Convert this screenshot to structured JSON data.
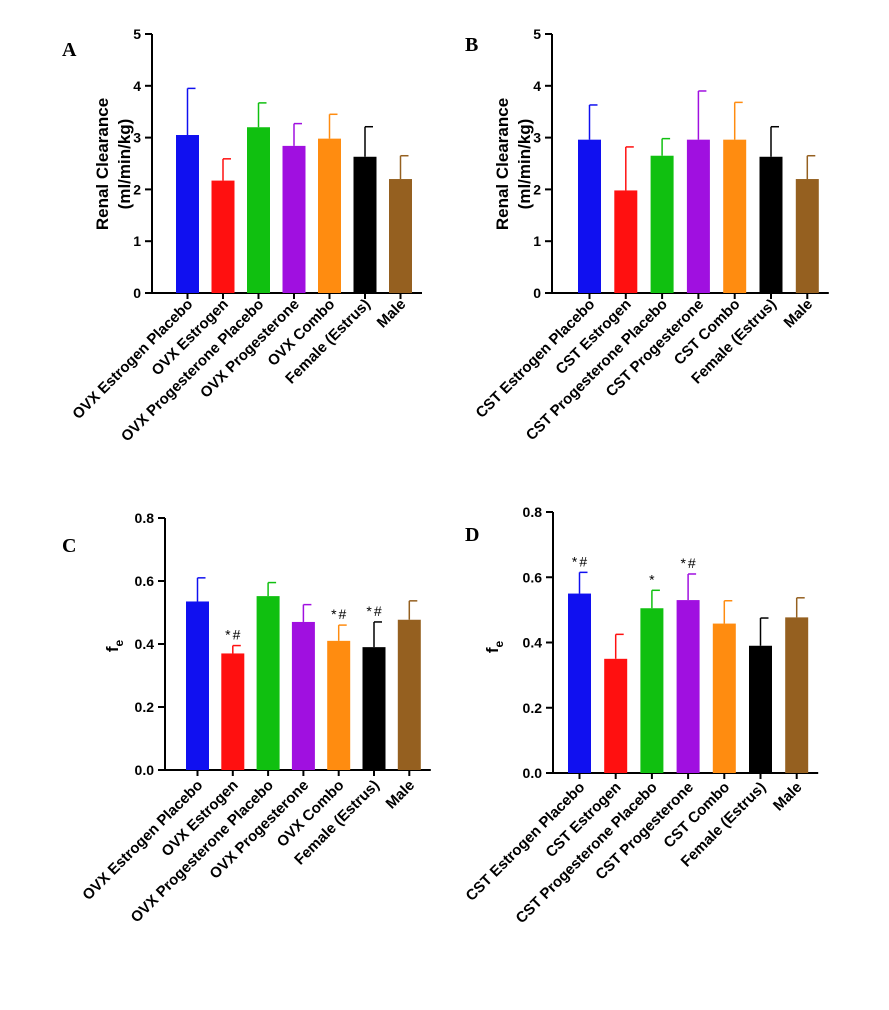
{
  "chart_data": [
    {
      "panel": "A",
      "type": "bar",
      "ylabel": [
        "Renal Clearance",
        "(ml/min/kg)"
      ],
      "ylim": [
        0,
        5
      ],
      "yticks": [
        "0",
        "1",
        "2",
        "3",
        "4",
        "5"
      ],
      "categories": [
        "OVX Estrogen Placebo",
        "OVX Estrogen",
        "OVX Progesterone Placebo",
        "OVX Progesterone",
        "OVX Combo",
        "Female (Estrus)",
        "Male"
      ],
      "values": [
        3.05,
        2.17,
        3.2,
        2.84,
        2.98,
        2.63,
        2.2
      ],
      "errors": [
        0.9,
        0.42,
        0.47,
        0.43,
        0.47,
        0.58,
        0.45
      ],
      "colors": [
        "#1010f0",
        "#ff1010",
        "#10c010",
        "#a010e0",
        "#ff8c10",
        "#000000",
        "#956020"
      ],
      "significance": [
        "",
        "",
        "",
        "",
        "",
        "",
        ""
      ]
    },
    {
      "panel": "B",
      "type": "bar",
      "ylabel": [
        "Renal Clearance",
        "(ml/min/kg)"
      ],
      "ylim": [
        0,
        5
      ],
      "yticks": [
        "0",
        "1",
        "2",
        "3",
        "4",
        "5"
      ],
      "categories": [
        "CST Estrogen Placebo",
        "CST Estrogen",
        "CST Progesterone Placebo",
        "CST Progesterone",
        "CST Combo",
        "Female (Estrus)",
        "Male"
      ],
      "values": [
        2.96,
        1.98,
        2.65,
        2.96,
        2.96,
        2.63,
        2.2
      ],
      "errors": [
        0.67,
        0.84,
        0.33,
        0.94,
        0.72,
        0.58,
        0.45
      ],
      "colors": [
        "#1010f0",
        "#ff1010",
        "#10c010",
        "#a010e0",
        "#ff8c10",
        "#000000",
        "#956020"
      ],
      "significance": [
        "",
        "",
        "",
        "",
        "",
        "",
        ""
      ]
    },
    {
      "panel": "C",
      "type": "bar",
      "ylabel": [
        "f",
        "e"
      ],
      "ylim": [
        0,
        0.8
      ],
      "yticks": [
        "0.0",
        "0.2",
        "0.4",
        "0.6",
        "0.8"
      ],
      "categories": [
        "OVX Estrogen Placebo",
        "OVX Estrogen",
        "OVX Progesterone Placebo",
        "OVX Progesterone",
        "OVX Combo",
        "Female (Estrus)",
        "Male"
      ],
      "values": [
        0.535,
        0.37,
        0.552,
        0.47,
        0.41,
        0.39,
        0.477
      ],
      "errors": [
        0.075,
        0.025,
        0.043,
        0.055,
        0.05,
        0.08,
        0.06
      ],
      "colors": [
        "#1010f0",
        "#ff1010",
        "#10c010",
        "#a010e0",
        "#ff8c10",
        "#000000",
        "#956020"
      ],
      "significance": [
        "",
        "*#",
        "",
        "",
        "*#",
        "*#",
        ""
      ]
    },
    {
      "panel": "D",
      "type": "bar",
      "ylabel": [
        "f",
        "e"
      ],
      "ylim": [
        0,
        0.8
      ],
      "yticks": [
        "0.0",
        "0.2",
        "0.4",
        "0.6",
        "0.8"
      ],
      "categories": [
        "CST Estrogen Placebo",
        "CST Estrogen",
        "CST Progesterone Placebo",
        "CST Progesterone",
        "CST Combo",
        "Female (Estrus)",
        "Male"
      ],
      "values": [
        0.55,
        0.35,
        0.505,
        0.53,
        0.458,
        0.39,
        0.477
      ],
      "errors": [
        0.065,
        0.075,
        0.055,
        0.08,
        0.07,
        0.085,
        0.06
      ],
      "colors": [
        "#1010f0",
        "#ff1010",
        "#10c010",
        "#a010e0",
        "#ff8c10",
        "#000000",
        "#956020"
      ],
      "significance": [
        "*#",
        "",
        "*",
        "*#",
        "",
        "",
        ""
      ]
    }
  ]
}
